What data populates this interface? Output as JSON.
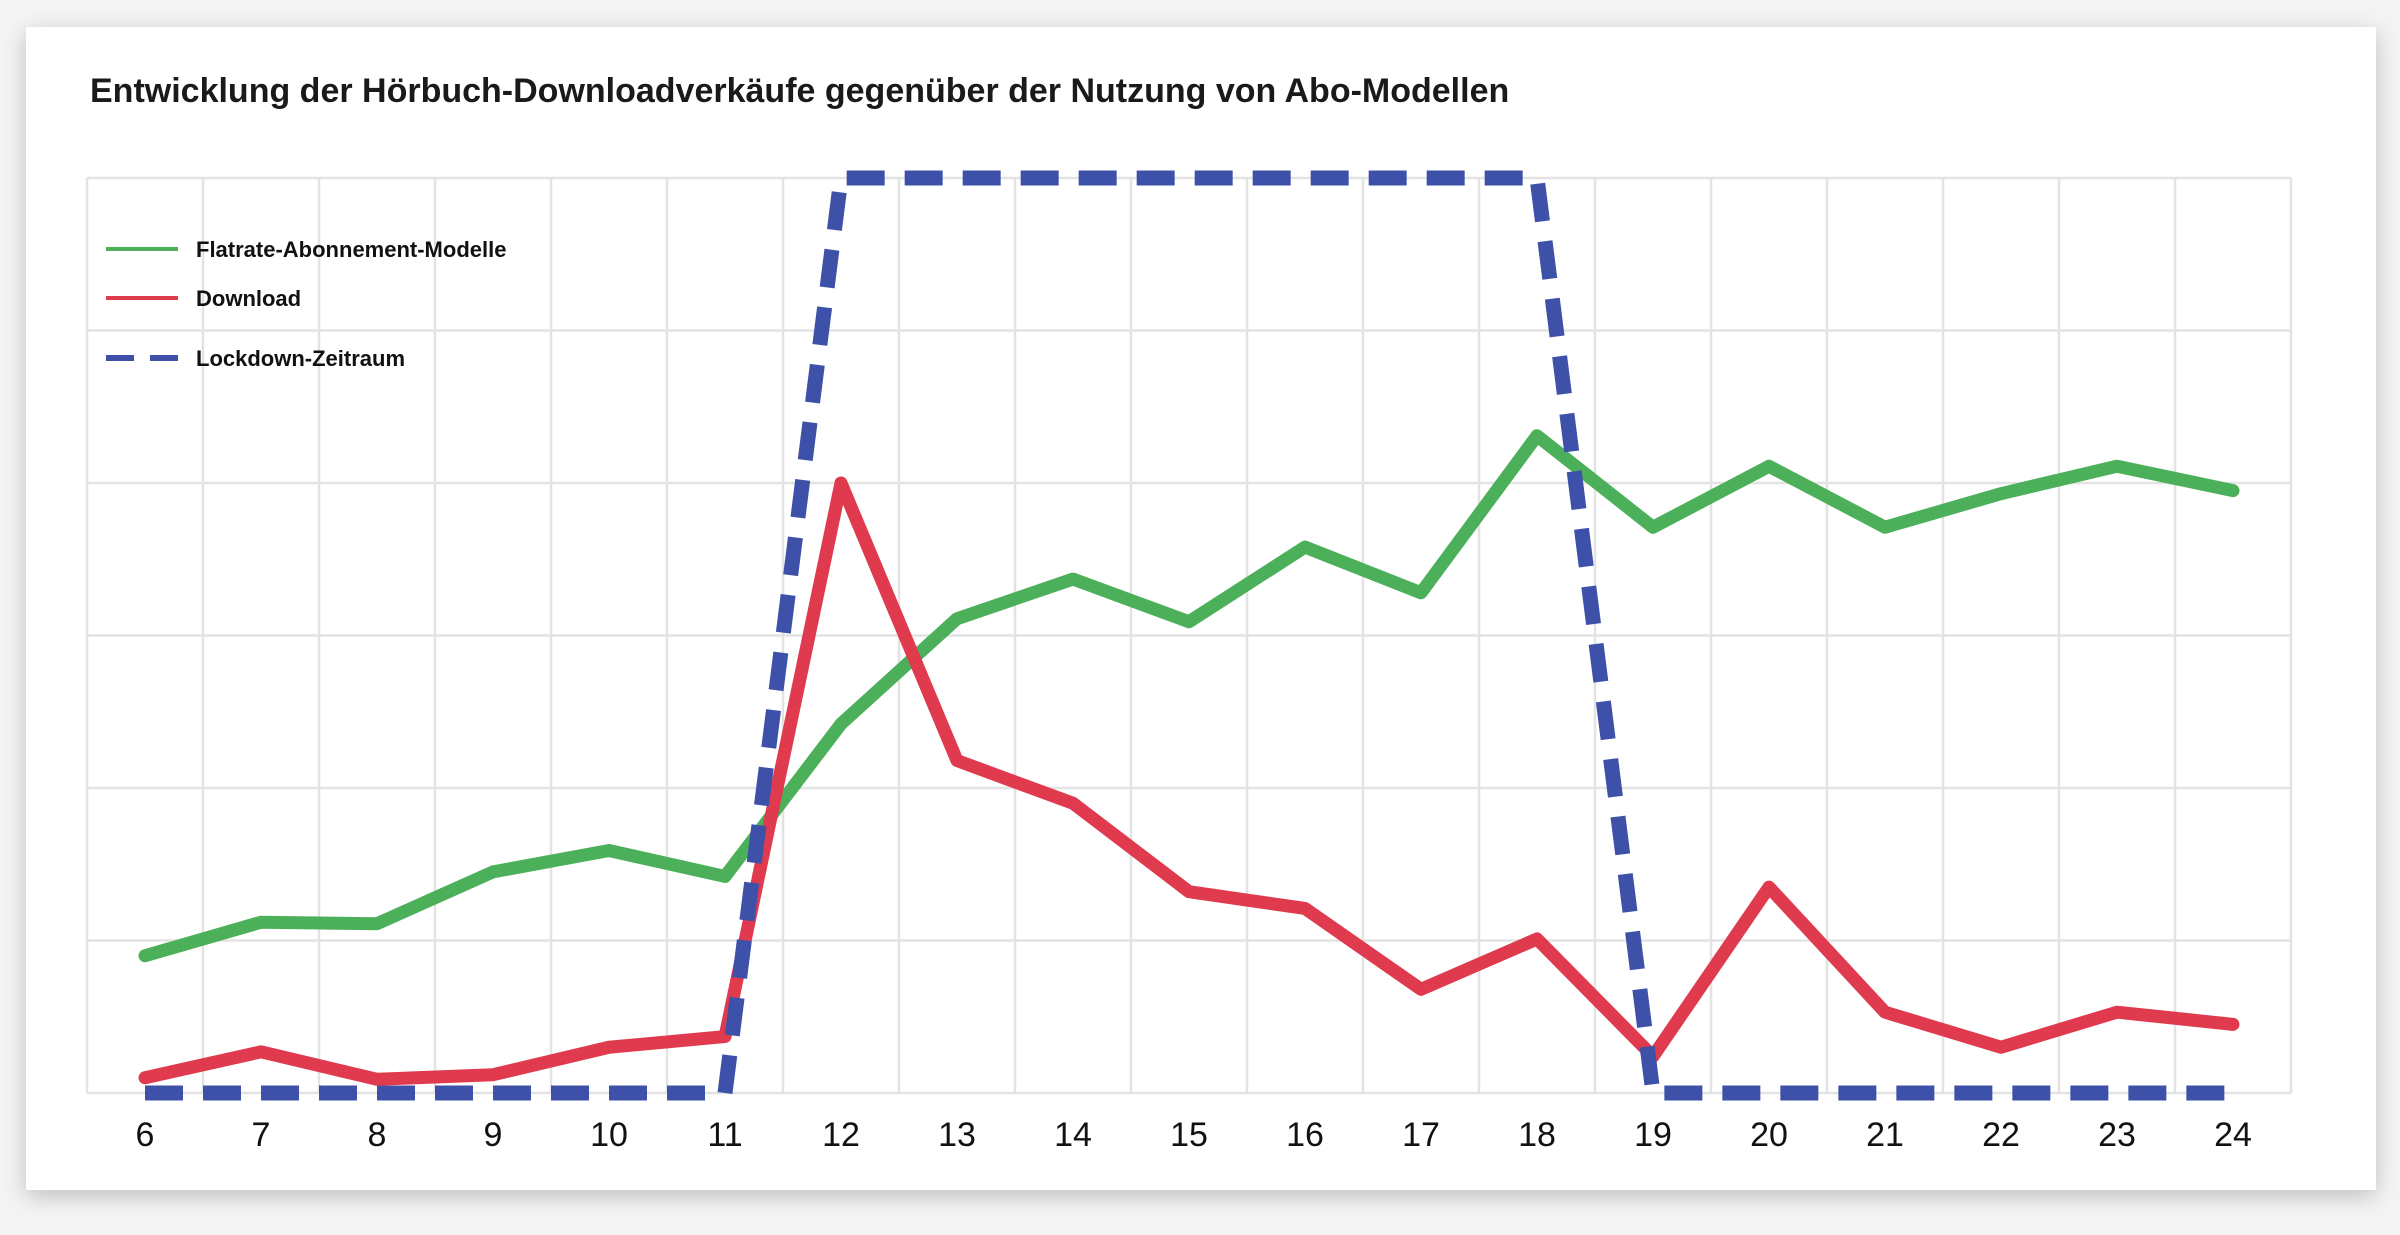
{
  "chart_data": {
    "type": "line",
    "title": "Entwicklung der Hörbuch-Downloadverkäufe gegenüber der Nutzung von Abo-Modellen",
    "xlabel": "",
    "ylabel": "",
    "x": [
      6,
      7,
      8,
      9,
      10,
      11,
      12,
      13,
      14,
      15,
      16,
      17,
      18,
      19,
      20,
      21,
      22,
      23,
      24
    ],
    "ylim": [
      0,
      6
    ],
    "grid": true,
    "legend_position": "top-left",
    "series": [
      {
        "name": "Flatrate-Abonnement-Modelle",
        "color": "#4cb05a",
        "style": "solid",
        "values": [
          0.9,
          1.12,
          1.11,
          1.45,
          1.59,
          1.42,
          2.42,
          3.11,
          3.37,
          3.09,
          3.58,
          3.28,
          4.31,
          3.71,
          4.11,
          3.71,
          3.93,
          4.11,
          3.95
        ]
      },
      {
        "name": "Download",
        "color": "#e03a4e",
        "style": "solid",
        "values": [
          0.1,
          0.27,
          0.09,
          0.12,
          0.3,
          0.37,
          4.0,
          2.18,
          1.9,
          1.32,
          1.21,
          0.68,
          1.01,
          0.24,
          1.35,
          0.53,
          0.3,
          0.53,
          0.45
        ]
      },
      {
        "name": "Lockdown-Zeitraum",
        "color": "#3e51a8",
        "style": "dashed",
        "values": [
          0,
          0,
          0,
          0,
          0,
          0,
          6,
          6,
          6,
          6,
          6,
          6,
          6,
          0,
          0,
          0,
          0,
          0,
          0
        ]
      }
    ]
  }
}
